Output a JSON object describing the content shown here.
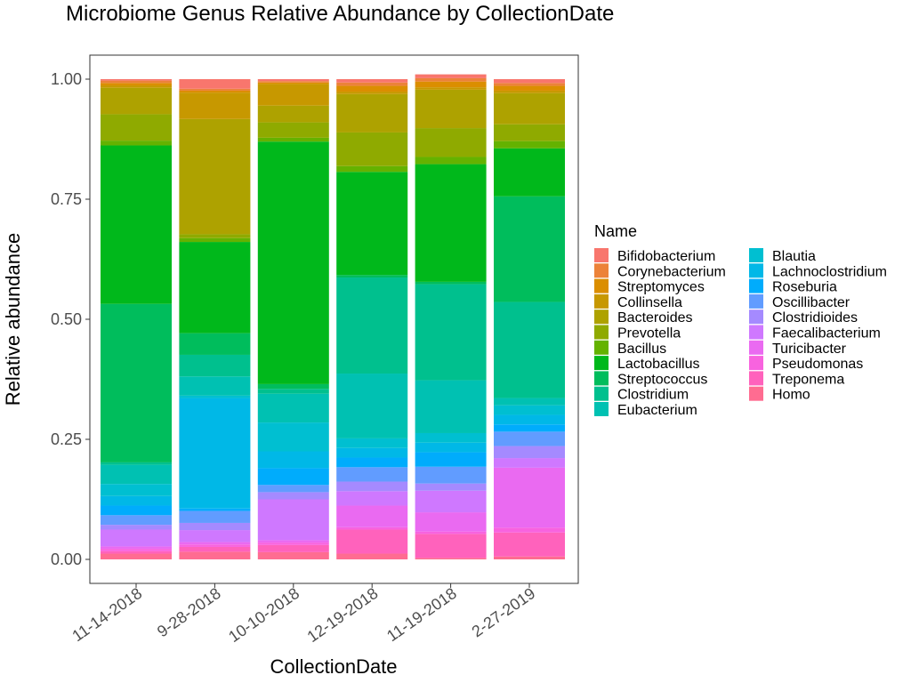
{
  "chart_data": {
    "type": "bar",
    "stacked": true,
    "title": "Microbiome Genus Relative Abundance by CollectionDate",
    "xlabel": "CollectionDate",
    "ylabel": "Relative abundance",
    "ylim": [
      0,
      1
    ],
    "yticks": [
      "0.00",
      "0.25",
      "0.50",
      "0.75",
      "1.00"
    ],
    "grid": false,
    "legend": {
      "title": "Name",
      "placement": "right"
    },
    "categories": [
      "11-14-2018",
      "9-28-2018",
      "10-10-2018",
      "12-19-2018",
      "11-19-2018",
      "2-27-2019"
    ],
    "series": [
      {
        "name": "Bifidobacterium",
        "color": "#F8766D",
        "values": [
          0.003,
          0.02,
          0.004,
          0.007,
          0.008,
          0.008
        ]
      },
      {
        "name": "Corynebacterium",
        "color": "#EC8239",
        "values": [
          0.005,
          0.004,
          0.003,
          0.007,
          0.007,
          0.006
        ]
      },
      {
        "name": "Streptomyces",
        "color": "#DB8E00",
        "values": [
          0.005,
          0.004,
          0.003,
          0.012,
          0.012,
          0.01
        ]
      },
      {
        "name": "Collinsella",
        "color": "#C79800",
        "values": [
          0.005,
          0.055,
          0.045,
          0.005,
          0.005,
          0.005
        ]
      },
      {
        "name": "Bacteroides",
        "color": "#AEA200",
        "values": [
          0.055,
          0.24,
          0.035,
          0.08,
          0.08,
          0.065
        ]
      },
      {
        "name": "Prevotella",
        "color": "#8FAA00",
        "values": [
          0.055,
          0.008,
          0.032,
          0.07,
          0.06,
          0.035
        ]
      },
      {
        "name": "Bacillus",
        "color": "#64B200",
        "values": [
          0.01,
          0.008,
          0.008,
          0.012,
          0.015,
          0.015
        ]
      },
      {
        "name": "Lactobacillus",
        "color": "#00B81B",
        "values": [
          0.33,
          0.19,
          0.505,
          0.215,
          0.245,
          0.1
        ]
      },
      {
        "name": "Streptococcus",
        "color": "#00BD5C",
        "values": [
          0.33,
          0.045,
          0.01,
          0.005,
          0.005,
          0.22
        ]
      },
      {
        "name": "Clostridium",
        "color": "#00C08E",
        "values": [
          0.005,
          0.045,
          0.01,
          0.2,
          0.2,
          0.2
        ]
      },
      {
        "name": "Eubacterium",
        "color": "#00C1B2",
        "values": [
          0.04,
          0.04,
          0.06,
          0.135,
          0.11,
          0.015
        ]
      },
      {
        "name": "Blautia",
        "color": "#00BFD1",
        "values": [
          0.025,
          0.005,
          0.06,
          0.02,
          0.02,
          0.02
        ]
      },
      {
        "name": "Lachnoclostridium",
        "color": "#00B8E7",
        "values": [
          0.02,
          0.23,
          0.035,
          0.02,
          0.02,
          0.02
        ]
      },
      {
        "name": "Roseburia",
        "color": "#00ACFC",
        "values": [
          0.02,
          0.005,
          0.035,
          0.02,
          0.03,
          0.015
        ]
      },
      {
        "name": "Oscillibacter",
        "color": "#619CFF",
        "values": [
          0.02,
          0.025,
          0.015,
          0.03,
          0.035,
          0.03
        ]
      },
      {
        "name": "Clostridioides",
        "color": "#A58AFF",
        "values": [
          0.01,
          0.015,
          0.015,
          0.02,
          0.015,
          0.025
        ]
      },
      {
        "name": "Faecalibacterium",
        "color": "#CF78FF",
        "values": [
          0.035,
          0.025,
          0.085,
          0.03,
          0.045,
          0.02
        ]
      },
      {
        "name": "Turicibacter",
        "color": "#EA6AF1",
        "values": [
          0.005,
          0.005,
          0.005,
          0.045,
          0.04,
          0.125
        ]
      },
      {
        "name": "Pseudomonas",
        "color": "#F863DF",
        "values": [
          0.005,
          0.005,
          0.005,
          0.005,
          0.005,
          0.01
        ]
      },
      {
        "name": "Treponema",
        "color": "#FF62BC",
        "values": [
          0.005,
          0.01,
          0.015,
          0.05,
          0.05,
          0.05
        ]
      },
      {
        "name": "Homo",
        "color": "#FF6C91",
        "values": [
          0.012,
          0.016,
          0.015,
          0.012,
          0.003,
          0.006
        ]
      }
    ]
  }
}
